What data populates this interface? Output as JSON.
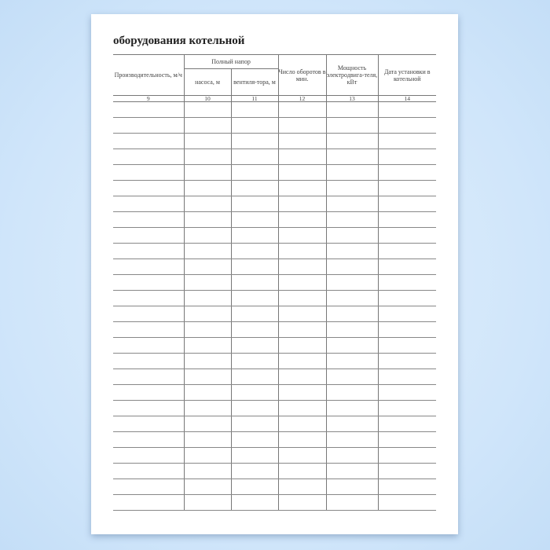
{
  "document": {
    "title": "оборудования котельной",
    "columns": {
      "productivity": "Производительность, м/ч",
      "full_head": "Полный напор",
      "pump": "насоса, м",
      "fan": "вентиля-тора, м",
      "rpm": "Число оборотов в мин.",
      "power": "Мощность электродвига-теля, кВт",
      "install_date": "Дата установки в котельной"
    },
    "column_numbers": [
      "9",
      "10",
      "11",
      "12",
      "13",
      "14"
    ],
    "empty_row_count": 26
  }
}
